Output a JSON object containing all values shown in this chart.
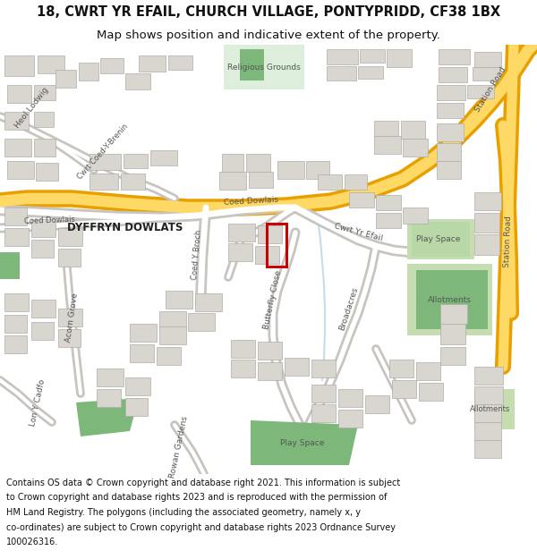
{
  "title_line1": "18, CWRT YR EFAIL, CHURCH VILLAGE, PONTYPRIDD, CF38 1BX",
  "title_line2": "Map shows position and indicative extent of the property.",
  "footer_lines": [
    "Contains OS data © Crown copyright and database right 2021. This information is subject",
    "to Crown copyright and database rights 2023 and is reproduced with the permission of",
    "HM Land Registry. The polygons (including the associated geometry, namely x, y",
    "co-ordinates) are subject to Crown copyright and database rights 2023 Ordnance Survey",
    "100026316."
  ],
  "map_bg": "#f2f0ed",
  "road_yellow_outer": "#e8a000",
  "road_yellow_inner": "#ffd966",
  "road_white_outer": "#c8c5c0",
  "road_white_inner": "#ffffff",
  "building_fill": "#d9d6d0",
  "building_stroke": "#b0ada8",
  "green_dark": "#7db87a",
  "green_light": "#c5ddb0",
  "water_blue": "#aecfe0",
  "red_boundary": "#cc0000",
  "title_fontsize": 10.5,
  "subtitle_fontsize": 9.5,
  "footer_fontsize": 7.0,
  "label_color": "#555555",
  "major_label_color": "#222222"
}
